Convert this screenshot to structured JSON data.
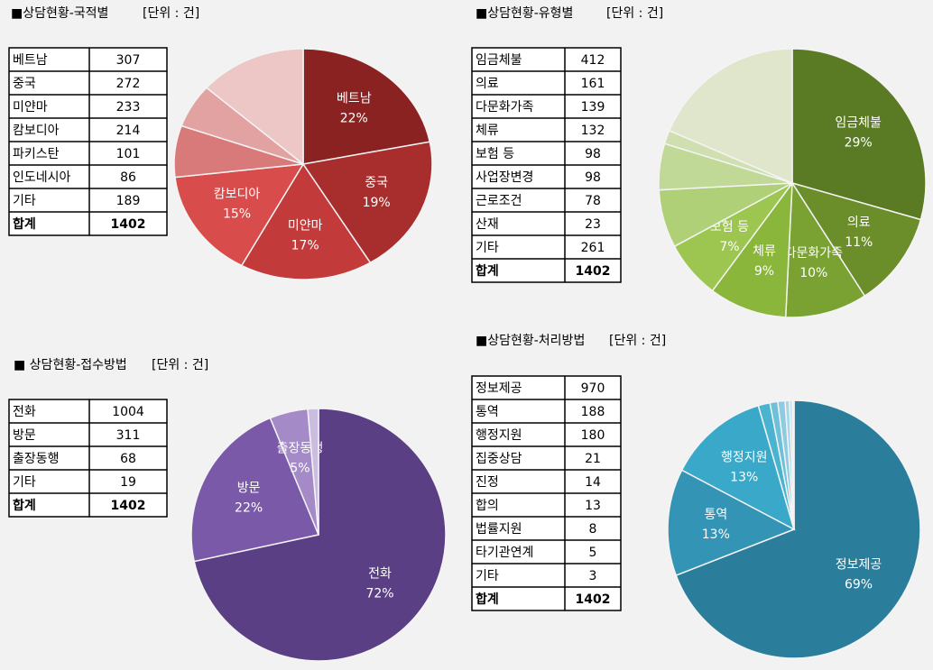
{
  "chart_data": [
    {
      "type": "pie",
      "title": "■상담현황-국적별",
      "unit": "[단위 : 건]",
      "categories": [
        "베트남",
        "중국",
        "미얀마",
        "캄보디아",
        "파키스탄",
        "인도네시아",
        "기타"
      ],
      "values": [
        307,
        272,
        233,
        214,
        101,
        86,
        189
      ],
      "value_labels": [
        "22%",
        "19%",
        "17%",
        "15%",
        null,
        null,
        null
      ],
      "colors": [
        "#8b2222",
        "#a82e2e",
        "#c23a3a",
        "#d94c4c",
        "#d87a7a",
        "#e3a2a2",
        "#edc6c6"
      ],
      "total_label": "합계",
      "total": 1402
    },
    {
      "type": "pie",
      "title": "■상담현황-유형별",
      "unit": "[단위 : 건]",
      "categories": [
        "임금체불",
        "의료",
        "다문화가족",
        "체류",
        "보험 등",
        "사업장변경",
        "근로조건",
        "산재",
        "기타"
      ],
      "values": [
        412,
        161,
        139,
        132,
        98,
        98,
        78,
        23,
        261
      ],
      "value_labels": [
        "29%",
        "11%",
        "10%",
        "9%",
        "7%",
        null,
        null,
        null,
        null
      ],
      "colors": [
        "#5a7a23",
        "#6b8e2a",
        "#7aa232",
        "#8ab63b",
        "#9cc64f",
        "#b0d078",
        "#c0d996",
        "#cfdfb0",
        "#dfe6cc"
      ],
      "total_label": "합계",
      "total": 1402
    },
    {
      "type": "pie",
      "title": "■ 상담현황-접수방법",
      "unit": "[단위 : 건]",
      "categories": [
        "전화",
        "방문",
        "출장동행",
        "기타"
      ],
      "values": [
        1004,
        311,
        68,
        19
      ],
      "value_labels": [
        "72%",
        "22%",
        "5%",
        null
      ],
      "colors": [
        "#5b3f85",
        "#7a5aa8",
        "#a58ac8",
        "#cbbde0"
      ],
      "total_label": "합계",
      "total": 1402
    },
    {
      "type": "pie",
      "title": "■상담현황-처리방법",
      "unit": "[단위 : 건]",
      "categories": [
        "정보제공",
        "통역",
        "행정지원",
        "집중상담",
        "진정",
        "합의",
        "법률지원",
        "타기관연계",
        "기타"
      ],
      "values": [
        970,
        188,
        180,
        21,
        14,
        13,
        8,
        5,
        3
      ],
      "value_labels": [
        "69%",
        "13%",
        "13%",
        null,
        null,
        null,
        null,
        null,
        null
      ],
      "colors": [
        "#2a7d9b",
        "#3494b5",
        "#3aa8c8",
        "#4ab3d0",
        "#6cc0d8",
        "#8ccbe0",
        "#a8d6e6",
        "#c0e0ec",
        "#d4e9f0"
      ],
      "total_label": "합계",
      "total": 1402
    }
  ]
}
